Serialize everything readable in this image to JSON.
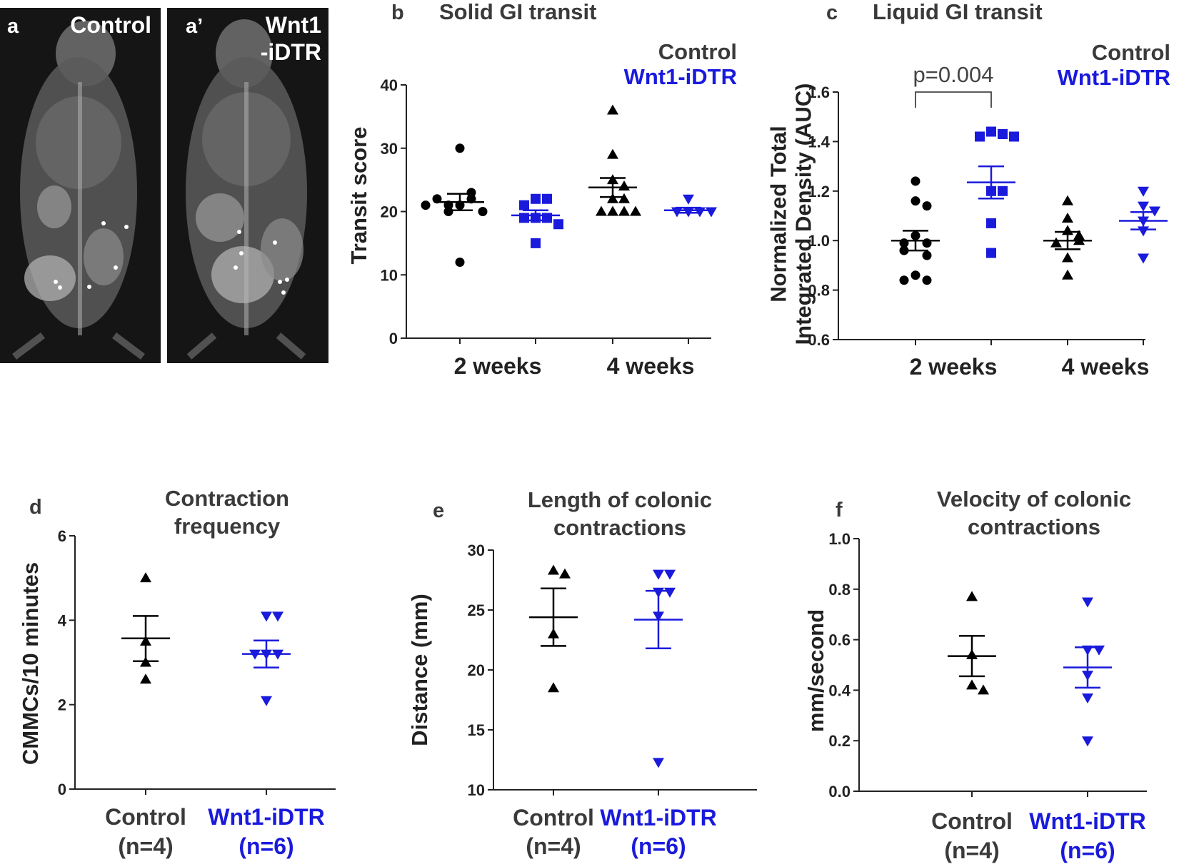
{
  "colors": {
    "control": "#000000",
    "wnt1": "#1a1adc",
    "title": "#3a3a3a"
  },
  "xray": [
    {
      "letter": "a",
      "label_lines": [
        "Control"
      ]
    },
    {
      "letter": "a’",
      "label_lines": [
        "Wnt1",
        "-iDTR"
      ]
    }
  ],
  "chart_data": [
    {
      "id": "b",
      "type": "scatter",
      "letter": "b",
      "title_lines": [
        "Solid GI transit"
      ],
      "ylabel_lines": [
        "Transit score"
      ],
      "ylim": [
        0,
        40
      ],
      "yticks": [
        0,
        10,
        20,
        30,
        40
      ],
      "ytick_labels": [
        "0",
        "10",
        "20",
        "30",
        "40"
      ],
      "categories": [
        "2 weeks",
        "4 weeks"
      ],
      "legend": [
        "Control",
        "Wnt1-iDTR"
      ],
      "significance": null,
      "groups": [
        {
          "name": "Control 2 weeks",
          "series": "Control",
          "category": "2 weeks",
          "marker": "circle",
          "values": [
            30,
            12,
            21,
            22,
            21,
            23,
            22,
            20,
            20,
            21
          ],
          "mean": 21.5,
          "sem_upper": 22.8,
          "sem_lower": 20.2
        },
        {
          "name": "Wnt1-iDTR 2 weeks",
          "series": "Wnt1-iDTR",
          "category": "2 weeks",
          "marker": "square",
          "values": [
            22,
            22,
            21,
            19,
            19,
            19,
            18,
            15
          ],
          "mean": 19.4,
          "sem_upper": 20.2,
          "sem_lower": 18.6
        },
        {
          "name": "Control 4 weeks",
          "series": "Control",
          "category": "4 weeks",
          "marker": "triangle-up",
          "values": [
            36,
            29,
            25,
            24,
            22,
            22,
            20,
            20,
            20,
            20
          ],
          "mean": 23.8,
          "sem_upper": 25.3,
          "sem_lower": 22.3
        },
        {
          "name": "Wnt1-iDTR 4 weeks",
          "series": "Wnt1-iDTR",
          "category": "4 weeks",
          "marker": "triangle-down",
          "values": [
            22,
            20,
            20,
            20,
            20
          ],
          "mean": 20.2,
          "sem_upper": 20.6,
          "sem_lower": 19.8
        }
      ]
    },
    {
      "id": "c",
      "type": "scatter",
      "letter": "c",
      "title_lines": [
        "Liquid GI transit"
      ],
      "ylabel_lines": [
        "Normalized Total",
        "Integrated Density (AUC)"
      ],
      "ylim": [
        0.6,
        1.6
      ],
      "yticks": [
        0.6,
        0.8,
        1.0,
        1.2,
        1.4,
        1.6
      ],
      "ytick_labels": [
        "0.6",
        "0.8",
        "1.0",
        "1.2",
        "1.4",
        "1.6"
      ],
      "categories": [
        "2 weeks",
        "4 weeks"
      ],
      "legend": [
        "Control",
        "Wnt1-iDTR"
      ],
      "significance": {
        "text": "p=0.004",
        "from": 0,
        "to": 1,
        "y": 1.59
      },
      "groups": [
        {
          "name": "Control 2 weeks",
          "series": "Control",
          "category": "2 weeks",
          "marker": "circle",
          "values": [
            1.24,
            1.16,
            1.14,
            1.02,
            0.99,
            0.99,
            0.96,
            0.94,
            0.86,
            0.84,
            0.84
          ],
          "mean": 1.0,
          "sem_upper": 1.04,
          "sem_lower": 0.96
        },
        {
          "name": "Wnt1-iDTR 2 weeks",
          "series": "Wnt1-iDTR",
          "category": "2 weeks",
          "marker": "square",
          "values": [
            1.44,
            1.43,
            1.42,
            1.42,
            1.2,
            1.2,
            1.07,
            0.95
          ],
          "mean": 1.235,
          "sem_upper": 1.3,
          "sem_lower": 1.17
        },
        {
          "name": "Control 4 weeks",
          "series": "Control",
          "category": "4 weeks",
          "marker": "triangle-up",
          "values": [
            1.16,
            1.09,
            1.04,
            1.02,
            1.0,
            0.99,
            0.93,
            0.86
          ],
          "mean": 1.0,
          "sem_upper": 1.035,
          "sem_lower": 0.965
        },
        {
          "name": "Wnt1-iDTR 4 weeks",
          "series": "Wnt1-iDTR",
          "category": "4 weeks",
          "marker": "triangle-down",
          "values": [
            1.2,
            1.14,
            1.12,
            1.08,
            1.04,
            0.93
          ],
          "mean": 1.08,
          "sem_upper": 1.115,
          "sem_lower": 1.045
        }
      ]
    },
    {
      "id": "d",
      "type": "scatter",
      "letter": "d",
      "title_lines": [
        "Contraction",
        "frequency"
      ],
      "ylabel_lines": [
        "CMMCs/10 minutes"
      ],
      "ylim": [
        0,
        6
      ],
      "yticks": [
        0,
        2,
        4,
        6
      ],
      "ytick_labels": [
        "0",
        "2",
        "4",
        "6"
      ],
      "categories": [
        "Control",
        "Wnt1-iDTR"
      ],
      "category_sublabels": [
        "(n=4)",
        "(n=6)"
      ],
      "legend": null,
      "significance": null,
      "groups": [
        {
          "name": "Control",
          "series": "Control",
          "category": "Control",
          "marker": "triangle-up",
          "values": [
            5.0,
            3.5,
            3.0,
            2.6
          ],
          "mean": 3.57,
          "sem_upper": 4.1,
          "sem_lower": 3.03
        },
        {
          "name": "Wnt1-iDTR",
          "series": "Wnt1-iDTR",
          "category": "Wnt1-iDTR",
          "marker": "triangle-down",
          "values": [
            4.1,
            4.1,
            3.2,
            3.2,
            3.2,
            2.1
          ],
          "mean": 3.2,
          "sem_upper": 3.52,
          "sem_lower": 2.88
        }
      ]
    },
    {
      "id": "e",
      "type": "scatter",
      "letter": "e",
      "title_lines": [
        "Length of colonic",
        "contractions"
      ],
      "ylabel_lines": [
        "Distance (mm)"
      ],
      "ylim": [
        10,
        30
      ],
      "yticks": [
        10,
        15,
        20,
        25,
        30
      ],
      "ytick_labels": [
        "10",
        "15",
        "20",
        "25",
        "30"
      ],
      "categories": [
        "Control",
        "Wnt1-iDTR"
      ],
      "category_sublabels": [
        "(n=4)",
        "(n=6)"
      ],
      "legend": null,
      "significance": null,
      "groups": [
        {
          "name": "Control",
          "series": "Control",
          "category": "Control",
          "marker": "triangle-up",
          "values": [
            28.3,
            28.0,
            23.0,
            18.5
          ],
          "mean": 24.4,
          "sem_upper": 26.8,
          "sem_lower": 22.0
        },
        {
          "name": "Wnt1-iDTR",
          "series": "Wnt1-iDTR",
          "category": "Wnt1-iDTR",
          "marker": "triangle-down",
          "values": [
            28.0,
            28.0,
            26.5,
            26.5,
            24.5,
            12.3
          ],
          "mean": 24.2,
          "sem_upper": 26.6,
          "sem_lower": 21.8
        }
      ]
    },
    {
      "id": "f",
      "type": "scatter",
      "letter": "f",
      "title_lines": [
        "Velocity of colonic",
        "contractions"
      ],
      "ylabel_lines": [
        "mm/second"
      ],
      "ylim": [
        0.0,
        1.0
      ],
      "yticks": [
        0.0,
        0.2,
        0.4,
        0.6,
        0.8,
        1.0
      ],
      "ytick_labels": [
        "0.0",
        "0.2",
        "0.4",
        "0.6",
        "0.8",
        "1.0"
      ],
      "categories": [
        "Control",
        "Wnt1-iDTR"
      ],
      "category_sublabels": [
        "(n=4)",
        "(n=6)"
      ],
      "legend": null,
      "significance": null,
      "groups": [
        {
          "name": "Control",
          "series": "Control",
          "category": "Control",
          "marker": "triangle-up",
          "values": [
            0.77,
            0.54,
            0.42,
            0.4
          ],
          "mean": 0.535,
          "sem_upper": 0.615,
          "sem_lower": 0.455
        },
        {
          "name": "Wnt1-iDTR",
          "series": "Wnt1-iDTR",
          "category": "Wnt1-iDTR",
          "marker": "triangle-down",
          "values": [
            0.75,
            0.56,
            0.56,
            0.46,
            0.37,
            0.2
          ],
          "mean": 0.49,
          "sem_upper": 0.57,
          "sem_lower": 0.41
        }
      ]
    }
  ]
}
